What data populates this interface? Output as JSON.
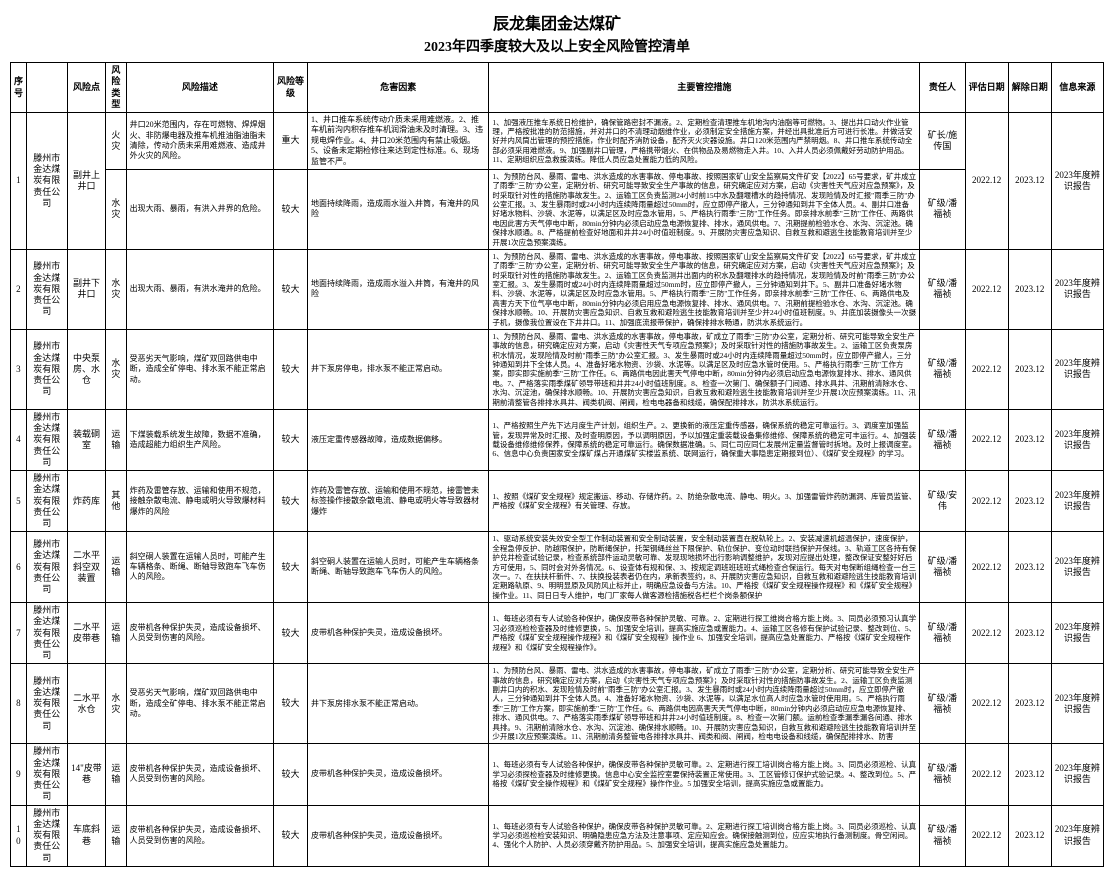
{
  "header": {
    "title": "辰龙集团金达煤矿",
    "subtitle": "2023年四季度较大及以上安全风险管控清单"
  },
  "columns": {
    "c0": "序号",
    "c1": "",
    "c2": "风险点",
    "c3": "风险类型",
    "c4": "风险描述",
    "c5": "风险等级",
    "c6": "危害因素",
    "c7": "主要管控措施",
    "c8": "责任人",
    "c9": "评估日期",
    "c10": "解除日期",
    "c11": "信息来源"
  },
  "rows": [
    {
      "idx": "1",
      "unit": "滕州市金达煤炭有限责任公司",
      "point": "副井上井口",
      "type1": "火灾",
      "desc1": "井口20米范围内，存在可燃物、焊焊烟火、非防爆电器及推车机推油脂油脂未清除，传动介质未采用难燃液、造成井外火灾的风险。",
      "level1": "重大",
      "factor1": "1、井口推车系统传动介质未采用难燃液。2、推车机前沟内积存推车机润滑油未及时清理。3、违规电焊作业。4、井口20米范围内有禁止吸烟。5、设备未定期检修往来达到定性标准。6、现场监管不严。",
      "measures1": "1、加强液压推车系统日检维护，确保管路密封不漏液。2、定期检查清理推车机地沟内油脂等可燃物。3、提出井口动火作业管理，严格按批准的防范措施，并对井口的不清理动烟维作业，必须制定安全措施方案，并经出具批准后方可进行长准。并做活安好并内风筒出管理的预控措施，作业时配齐消防设备，配齐灭火灾器设施。井口120米范围内严禁明烟。8、井口推车系统传动全部必须采用难燃液。9、加强副井口管理，严格携带烟火、在供物品及易燃物走入井。10、入井人员必须佩戴好劳动防护用品。11、定期组织应急救援演练。降低人员应急处置能力低的风险。",
      "resp1": "矿长/施传国",
      "type2": "水灾",
      "desc2": "出现大雨、暴雨，有洪入井界的危险。",
      "level2": "较大",
      "factor2": "地面持续降雨，造成雨水溢入井筒，有淹井的风险",
      "measures2": "1、为预防台风、暴雨、雷电、洪水造成的水害事故、停电事故、按照国家矿山安全监察局文件矿安【2022】65号要求，矿井成立了雨季\"三防\"办公室，定期分析、研究可能导致安全生产事故的信息，研究确定应对方案，启动《灾害性天气应对应急预案》，及时采取针对性的措施防事故发生。2、运输工区负责监测24小时前15中水及翻堰槽水的趋持情况、发现险情及时汇报\"雨季三防\"办公室汇报。3、发生暴雨时或24小时内连续降雨量超过50mm时，应立即停产撤人，三分钟通知到井下全体人员。4、副井口准备好堵水物料、沙袋、水泥等，以满足区及时应急水管用，5、严格执行雨季\"三防\"工作任务。即亲排水前季\"三防\"工作任、两路供电因此害方天气停电中断，80min分钟内必须启动应急电源恢复排、排水，通风供电。7、汛期提前检验水仓、水沟、沉淀池。确保排水顺通。8、严格提前检查好地面和井井24小时值班制度。9、开展防灾害应急知识、自救互救和避逃生技能教育培训并至少开展1次应急预案演练。",
      "resp2": "矿级/潘福祯",
      "date1": "2022.12",
      "date2": "2023.12",
      "src": "2023年度辨识报告"
    },
    {
      "idx": "2",
      "unit": "滕州市金达煤炭有限责任公司",
      "point": "副井下井口",
      "type": "水灾",
      "desc": "出现大雨、暴雨，有洪水淹井的危险。",
      "level": "较大",
      "factor": "地面持续降雨，造成雨水溢入井筒，有淹井的风险",
      "measures": "1、为预防台风、暴雨、雷电、洪水造成的水害事故，停电事故、按照国家矿山安全监察局文件矿安【2022】65号要求，矿井成立了雨季\"三防\"办公室，定期分析、研究可能导致安全生产事故的信息，研究确定应对方案，启动《灾害性天气应对应急预案》；及时采取针对性的措施防事故发生。2、运输工区负责监测井出面内的积水及翻堰排水的趋持情况，发现险情及时前\"雨季三防\"办公室汇报。3、发生暴雨时或24小时内连续降雨量超过50mm时，应立即停产撤人，三分钟通知到井下。5、副井口准备好堵水物料、沙袋、水泥等，以满足区及时应急水管用。5、严格执行雨季\"三防\"工作任务，即亲排水前季\"三防\"工作任、6、两路供电及高害方天下位气亭电中断，80min分钟内必须启用应急电源恢复排、排水、通风供电。7、汛期前提检验水仓、水沟、沉淀池。确保排水顺畅。10、开展防灾害应急知识、自救互救和避险逃生技能教育培训并至少并24小时值班制度。9、井底加装摄像头一次摄子机，摄像我位置设在下井井口。11、加强底流报带保护，确保排排水畅通，防洪水系统运行。",
      "resp": "矿级/潘福祯",
      "date1": "2022.12",
      "date2": "2023.12",
      "src": "2023年度辨识报告"
    },
    {
      "idx": "3",
      "unit": "滕州市金达煤炭有限责任公司",
      "point": "中央泵房、水仓",
      "type": "水灾",
      "desc": "受恶劣天气影响，煤矿双回路供电中断，造成全矿停电、排水泵不能正常启动。",
      "level": "较大",
      "factor": "井下泵房停电，排水泵不能正常启动。",
      "measures": "1、为预防台风、暴雨、雷电、洪水造成的水害事故，停电事故，矿成立了雨季\"三防\"办公室，定期分析、研究可能导致全安生产事故的信息，研究确定应对方案，启动《灾害性天气专项应急预案》；及时采取针对性的措施防事故发生。2、运输工区负责泵房积水情况，发现险情及时前\"雨季三防\"办公室汇报。3、发生暴雨时或24小时内连续降雨量超过50mm时，应立即停产撤人，三分钟通知到井下全体人员。4、准备好堵水物资、沙袋、水泥等。以满足区及时应急水管时使用。5、严格执行雨季\"三防\"工作方案，即实即实施前季\"三防\"工作任。6、两路供电因此害天气停电中断，80min分钟内必须启动应急电源恢复排水、排水、通风供电。7、严格落实雨季煤矿领导带班和井井24小时值班制度。8、检查一次第门、确保额子门间通、排水具井、汛期前清除水仓、水沟、沉淀池，确保排水顺畅。10、开展防灾害应急知识，自救互救和避险逃生技能教育培训并至少开展1次应预案演练。11、汛期前清整管各排排水具井、阀类机阀、闸阀，检电电器备和线缆，确保配排排水，防洪水系统运行。",
      "resp": "矿级/潘福祯",
      "date1": "2022.12",
      "date2": "2023.12",
      "src": "2023年度辨识报告"
    },
    {
      "idx": "4",
      "unit": "滕州市金达煤炭有限责任公司",
      "point": "装载硐室",
      "type": "运输",
      "desc": "下煤装载系统发生故障，数据不准确，造成超能力组织生产风险。",
      "level": "较大",
      "factor": "液压定重传感器故障，造成数据偏移。",
      "measures": "1、严格按照生产先下达月度生产计划，组织生产。2、更换新的液压定重传感器，确保系统的稳定可靠运行。3、调度室加强监管，发现异常及时汇报、及时查明原因，予以调明原因，予以加强定重装载设备集修维修、保障系统的稳定可丰运行。4、加强装载设备维修维修保养，保障系统的稳定可靠运行。确保数据准确。5、同仁司应同仁发展州定量监督管时拆地。及时上报调度室。6、信息中心负责国家安全煤矿煤占开通煤矿实楼监系统、联网运行，确保重大事隐患定期报到位）、《煤矿安全规程》的学习。",
      "resp": "矿级/潘福祯",
      "date1": "2022.12",
      "date2": "2023.12",
      "src": "2023年度辨识报告"
    },
    {
      "idx": "5",
      "unit": "滕州市金达煤炭有限责任公司",
      "point": "炸药库",
      "type": "其他",
      "desc": "炸药及雷管存放、运输和使用不规范，接触杂散电流、静电或明火导致爆材料爆炸的风险",
      "level": "较大",
      "factor": "炸药及雷管存放、运输和使用不规范，接雷管未标签操作接散杂散电流、静电或明火等导致器材爆炸",
      "measures": "1、按照《煤矿安全规程》规定搬运、移动、存储炸药。2、防绝杂散电流、静电、明火。3、加强雷管炸药防漏洞、库管员监管、严格按《煤矿安全规程》有关管理、存放。",
      "resp": "矿级/安伟",
      "date1": "2022.12",
      "date2": "2023.12",
      "src": "2023年度辨识报告"
    },
    {
      "idx": "6",
      "unit": "滕州市金达煤炭有限责任公司",
      "point": "二水平斜空双装置",
      "type": "运输",
      "desc": "斜空硐人装置在运输人员时，可能产生车辆格条、断绳、断轴导致跑车飞车伤人的风险。",
      "level": "较大",
      "factor": "斜空硐人装置在运输人员时，可能产生车辆格条断绳、断轴导致跑车飞车伤人的风险。",
      "measures": "1、驱动系统安装失效安全型工作制动装置和安全制动装置，安全制动装置直在脱轨轮上。2、安装减速机超温保护，速度保护，全程急停反护、防越限保护，防断绳保护，托架钢绳丝丝下限保护、轨位保护、变位动时联挡保护开保线。3、轨道工区各持有保护兑井检查试验记录，检查系统部件运动灵敏可靠、发现现地损坏出行影响调整维护，发现对应提出处理，整改保证安整好好后方可使用，5、同时会对外务情况。6、设查体有规和保、3、按规定调班班班班式绳检查合保运行。每天对电保断组绳检查一台三次一。7、在扶扶杆新件、7、扶换投装表者仍在内，承新表签约，8、开展防灾害应急知识，自救互救和避避险逃生技能教育培训定期路轨原、9、明明显原及风防风止标并止，明确应急设备与方法。10、严格按《煤矿安全规程操作规程》和《煤矿安全规程》操作业。11、同日日专人维护，电门厂家每人做客源检措施税各栏栏个岗条额保护",
      "resp": "矿级/潘福祯",
      "date1": "2022.12",
      "date2": "2023.12",
      "src": "2023年度辨识报告"
    },
    {
      "idx": "7",
      "unit": "滕州市金达煤炭有限责任公司",
      "point": "二水平皮带巷",
      "type": "运输",
      "desc": "皮带机各种保护失灵，造成设备损坏、人员受到伤害的风险。",
      "level": "较大",
      "factor": "皮带机各种保护失灵，造成设备损坏。",
      "measures": "1、每班必须有专人试验各种保护，确保皮带各种保护灵敏、可靠。2、定期进行探工维岗合格方能上岗。3、同员必须预习认真学习必须巡检检查器及时维修更换，5、加强安全培训，提高实施应急或置能力。4、运输工区各修有保护试验记录、整改到位、5、严格按《煤矿安全规程操作规程》和《煤矿安全规程》操作业 6、加强安全培训，提高应急处置能力、严格按《煤矿安全规程作规程》和《煤矿安全规程操作》。",
      "resp": "矿级/潘福祯",
      "date1": "2022.12",
      "date2": "2023.12",
      "src": "2023年度辨识报告"
    },
    {
      "idx": "8",
      "unit": "滕州市金达煤炭有限责任公司",
      "point": "二水平水仓",
      "type": "水灾",
      "desc": "受恶劣天气影响，煤矿双回路供电中断，造成全矿停电、排水泵不能正常启动。",
      "level": "较大",
      "factor": "井下泵房排水泵不能正常启动。",
      "measures": "1、为预防台风、暴雨、雷电、洪水造成的水害事故，停电事故，矿成立了雨季\"三防\"办公室，定期分析、研究可能导致全安生产事故的信息，研究确定应对方案，启动《灾害性天气专项应急预案》；及时采取针对性的措施防事故发生。2、运输工区负责监测副井口内的积水、发现险情及时前\"雨季三防\"办公室汇报。3、发生暴雨时或24小时内连续降雨量超过50mm时，应立即停产撤人，三分钟通知到井下全体人员。4、准备好堵水物资、沙袋、水泥等，以满足水位高人时应急水管时使用用。5、严格执行雨季\"三防\"工作方案，即实施前季\"三防\"工作任。6、两路供电因高害天天气停电中断，80min分钟内必须启动应应急电源恢复排、排水、通风供电。7、严格落实雨季煤矿领导带班和井井24小时值班制度。8、检查一次第门额。运前检查季漏季漏各间通、排水具排。9、汛期前清除水仓、水沟、沉淀池、确保排水顺畅。10、开展防灾害应急知识，自救互救和避避险逃生技能教育培训并至少开展1次应预案演练。11、汛期前清务整管电各排排水具井、阀类和阀、闸阀，检电电设备和线缆，确保配排排水、防害",
      "resp": "矿级/潘福祯",
      "date1": "2022.12",
      "date2": "2023.12",
      "src": "2023年度辨识报告"
    },
    {
      "idx": "9",
      "unit": "滕州市金达煤炭有限责任公司",
      "point": "14\"皮带巷",
      "type": "运输",
      "desc": "皮带机各种保护失灵，造成设备损坏、人员受到伤害的风险。",
      "level": "较大",
      "factor": "皮带机各种保护失灵，造成设备损坏。",
      "measures": "1、每班必须有专人试验各种保护，确保皮带各种保护灵敏可靠。2、定期进行探工培训岗合格方能上岗。3、同员必须巡检、认真学习必须探检查器及时维修更换。信息中心安全监控室要保持装置正常使用。3、工区管修订保护式验记录。4、整改到位。5、严格按《煤矿安全操作规程》和《煤矿安全规程》操作作业。5 加强安全培训，提高实施应急或置能力。",
      "resp": "矿级/潘福祯",
      "date1": "2022.12",
      "date2": "2023.12",
      "src": "2023年度辨识报告"
    },
    {
      "idx": "10",
      "unit": "滕州市金达煤炭有限责任公司",
      "point": "车底斜巷",
      "type": "运输",
      "desc": "皮带机各种保护失灵，造成设备损坏、人员受到伤害的风险。",
      "level": "较大",
      "factor": "皮带机各种保护失灵，造成设备损坏。",
      "measures": "1、每班必须有专人试验各种保护，确保皮带各种保护灵敏可靠。2、定期进行探工培训岗合格方能上岗。3、同员必须巡检、认真学习必须巡检检安装知识、明确隐患应急方法及注意事项、定应知应会。确保接触测到位，应应实地执行备测制度。骨空闲间。4、强化个人防护、人员必须穿戴齐防护用品。5、加强安全培训，提高实施应急处置能力。",
      "resp": "矿级/潘福祯",
      "date1": "2022.12",
      "date2": "2023.12",
      "src": "2023年度辨识报告"
    }
  ]
}
